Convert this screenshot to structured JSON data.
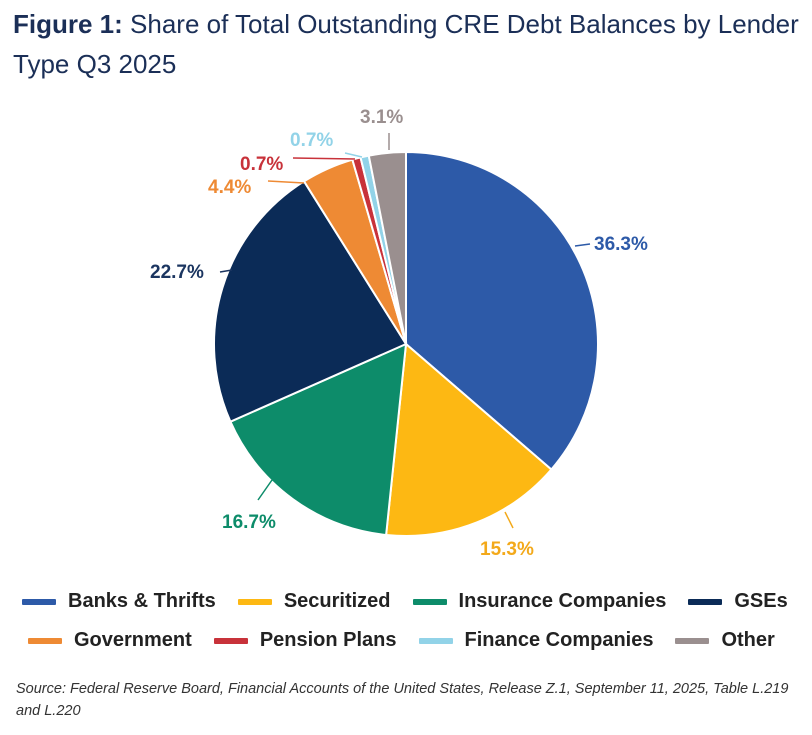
{
  "title": {
    "prefix": "Figure 1:",
    "text": " Share of Total Outstanding CRE Debt Balances by Lender Type Q3 2025"
  },
  "source": "Source: Federal Reserve Board, Financial Accounts of the United States, Release Z.1, September 11, 2025, Table L.219 and L.220",
  "legend": {
    "row1": [
      {
        "label": "Banks & Thrifts",
        "color": "#2d5aa8"
      },
      {
        "label": "Securitized",
        "color": "#fdb813"
      },
      {
        "label": "Insurance Companies",
        "color": "#0d8c6a"
      },
      {
        "label": "GSEs",
        "color": "#0b2b57"
      }
    ],
    "row2": [
      {
        "label": "Government",
        "color": "#ee8a34"
      },
      {
        "label": "Pension Plans",
        "color": "#c8323a"
      },
      {
        "label": "Finance Companies",
        "color": "#92d3e8"
      },
      {
        "label": "Other",
        "color": "#9a8f8f"
      }
    ]
  },
  "chart_data": {
    "type": "pie",
    "title": "Share of Total Outstanding CRE Debt Balances by Lender Type Q3 2025",
    "categories": [
      "Banks & Thrifts",
      "Securitized",
      "Insurance Companies",
      "GSEs",
      "Government",
      "Pension Plans",
      "Finance Companies",
      "Other"
    ],
    "values": [
      36.3,
      15.3,
      16.7,
      22.7,
      4.4,
      0.7,
      0.7,
      3.1
    ],
    "labels": [
      "36.3%",
      "15.3%",
      "16.7%",
      "22.7%",
      "4.4%",
      "0.7%",
      "0.7%",
      "3.1%"
    ],
    "colors": [
      "#2d5aa8",
      "#fdb813",
      "#0d8c6a",
      "#0b2b57",
      "#ee8a34",
      "#c8323a",
      "#92d3e8",
      "#9a8f8f"
    ],
    "label_colors": [
      "#2d5aa8",
      "#f3a91a",
      "#0d8c6a",
      "#1b3560",
      "#ee8a34",
      "#c8323a",
      "#92d3e8",
      "#9a8f8f"
    ],
    "start_angle": "12 o'clock, clockwise",
    "legend_position": "bottom"
  }
}
